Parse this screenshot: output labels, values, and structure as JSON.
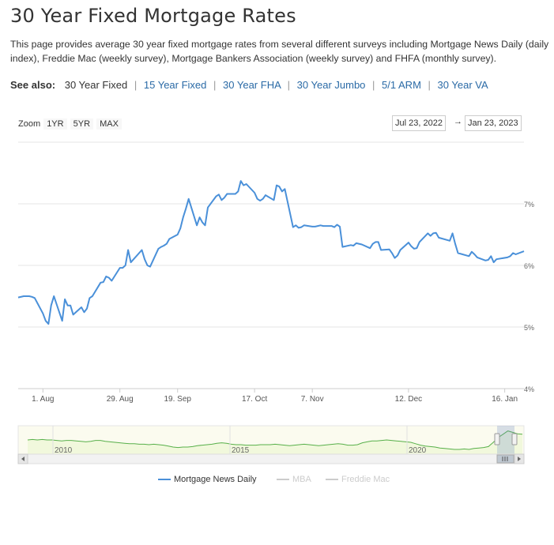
{
  "page": {
    "title": "30 Year Fixed Mortgage Rates",
    "description": "This page provides average 30 year fixed mortgage rates from several different surveys including Mortgage News Daily (daily index), Freddie Mac (weekly survey), Mortgage Bankers Association (weekly survey) and FHFA (monthly survey)."
  },
  "see_also": {
    "label": "See also:",
    "current": "30 Year Fixed",
    "links": [
      "15 Year Fixed",
      "30 Year FHA",
      "30 Year Jumbo",
      "5/1 ARM",
      "30 Year VA"
    ]
  },
  "zoom": {
    "label": "Zoom",
    "buttons": [
      "1YR",
      "5YR",
      "MAX"
    ]
  },
  "range": {
    "from": "Jul 23, 2022",
    "separator": "→",
    "to": "Jan 23, 2023"
  },
  "colors": {
    "series": "#4a90d9",
    "navigator_line": "#58b04a",
    "inactive": "#cccccc",
    "link": "#2a6aa6"
  },
  "chart_data": {
    "type": "line",
    "title": "",
    "xlabel": "",
    "ylabel": "",
    "x_ticks": [
      "1. Aug",
      "29. Aug",
      "19. Sep",
      "17. Oct",
      "7. Nov",
      "12. Dec",
      "16. Jan"
    ],
    "y_ticks": [
      "4%",
      "5%",
      "6%",
      "7%"
    ],
    "ylim": [
      4,
      8
    ],
    "grid": true,
    "legend_position": "bottom",
    "series": [
      {
        "name": "Mortgage News Daily",
        "x": [
          "2022-07-23",
          "2022-07-25",
          "2022-07-27",
          "2022-07-28",
          "2022-07-29",
          "2022-08-01",
          "2022-08-02",
          "2022-08-03",
          "2022-08-04",
          "2022-08-05",
          "2022-08-08",
          "2022-08-09",
          "2022-08-10",
          "2022-08-11",
          "2022-08-12",
          "2022-08-15",
          "2022-08-16",
          "2022-08-17",
          "2022-08-18",
          "2022-08-19",
          "2022-08-22",
          "2022-08-23",
          "2022-08-24",
          "2022-08-25",
          "2022-08-26",
          "2022-08-29",
          "2022-08-30",
          "2022-08-31",
          "2022-09-01",
          "2022-09-02",
          "2022-09-06",
          "2022-09-07",
          "2022-09-08",
          "2022-09-09",
          "2022-09-12",
          "2022-09-13",
          "2022-09-14",
          "2022-09-15",
          "2022-09-16",
          "2022-09-19",
          "2022-09-20",
          "2022-09-21",
          "2022-09-22",
          "2022-09-23",
          "2022-09-26",
          "2022-09-27",
          "2022-09-28",
          "2022-09-29",
          "2022-09-30",
          "2022-10-03",
          "2022-10-04",
          "2022-10-05",
          "2022-10-06",
          "2022-10-07",
          "2022-10-10",
          "2022-10-11",
          "2022-10-12",
          "2022-10-13",
          "2022-10-14",
          "2022-10-17",
          "2022-10-18",
          "2022-10-19",
          "2022-10-20",
          "2022-10-21",
          "2022-10-24",
          "2022-10-25",
          "2022-10-26",
          "2022-10-27",
          "2022-10-28",
          "2022-10-31",
          "2022-11-01",
          "2022-11-02",
          "2022-11-03",
          "2022-11-04",
          "2022-11-07",
          "2022-11-08",
          "2022-11-09",
          "2022-11-10",
          "2022-11-11",
          "2022-11-14",
          "2022-11-15",
          "2022-11-16",
          "2022-11-17",
          "2022-11-18",
          "2022-11-21",
          "2022-11-22",
          "2022-11-23",
          "2022-11-25",
          "2022-11-28",
          "2022-11-29",
          "2022-11-30",
          "2022-12-01",
          "2022-12-02",
          "2022-12-05",
          "2022-12-06",
          "2022-12-07",
          "2022-12-08",
          "2022-12-09",
          "2022-12-12",
          "2022-12-13",
          "2022-12-14",
          "2022-12-15",
          "2022-12-16",
          "2022-12-19",
          "2022-12-20",
          "2022-12-21",
          "2022-12-22",
          "2022-12-23",
          "2022-12-27",
          "2022-12-28",
          "2022-12-29",
          "2022-12-30",
          "2023-01-03",
          "2023-01-04",
          "2023-01-05",
          "2023-01-06",
          "2023-01-09",
          "2023-01-10",
          "2023-01-11",
          "2023-01-12",
          "2023-01-13",
          "2023-01-17",
          "2023-01-18",
          "2023-01-19",
          "2023-01-20",
          "2023-01-23"
        ],
        "values": [
          5.48,
          5.5,
          5.5,
          5.49,
          5.47,
          5.22,
          5.1,
          5.05,
          5.35,
          5.5,
          5.1,
          5.45,
          5.35,
          5.35,
          5.2,
          5.32,
          5.24,
          5.3,
          5.47,
          5.5,
          5.72,
          5.73,
          5.82,
          5.8,
          5.75,
          5.96,
          5.96,
          6.0,
          6.25,
          6.05,
          6.25,
          6.1,
          6.0,
          5.98,
          6.27,
          6.3,
          6.32,
          6.35,
          6.43,
          6.5,
          6.6,
          6.78,
          6.92,
          7.08,
          6.65,
          6.78,
          6.7,
          6.65,
          6.94,
          7.12,
          7.15,
          7.06,
          7.1,
          7.16,
          7.16,
          7.2,
          7.37,
          7.3,
          7.32,
          7.18,
          7.08,
          7.05,
          7.08,
          7.14,
          7.06,
          7.3,
          7.28,
          7.2,
          7.24,
          6.62,
          6.65,
          6.61,
          6.62,
          6.65,
          6.63,
          6.63,
          6.64,
          6.65,
          6.64,
          6.64,
          6.62,
          6.66,
          6.63,
          6.3,
          6.33,
          6.32,
          6.36,
          6.34,
          6.28,
          6.35,
          6.38,
          6.38,
          6.25,
          6.26,
          6.2,
          6.12,
          6.16,
          6.25,
          6.37,
          6.31,
          6.27,
          6.28,
          6.38,
          6.52,
          6.48,
          6.52,
          6.53,
          6.45,
          6.4,
          6.52,
          6.35,
          6.2,
          6.15,
          6.22,
          6.18,
          6.13,
          6.08,
          6.09,
          6.15,
          6.05,
          6.1,
          6.13,
          6.15,
          6.2,
          6.18,
          6.23
        ]
      }
    ],
    "inactive_series": [
      "MBA",
      "Freddie Mac"
    ],
    "navigator": {
      "x_ticks": [
        "2010",
        "2015",
        "2020"
      ],
      "values": [
        5.0,
        5.1,
        5.0,
        5.1,
        5.0,
        5.0,
        4.9,
        4.8,
        4.9,
        4.9,
        4.8,
        4.7,
        4.6,
        4.7,
        4.9,
        4.9,
        4.7,
        4.6,
        4.5,
        4.4,
        4.3,
        4.2,
        4.2,
        4.1,
        4.1,
        4.0,
        4.1,
        4.0,
        3.9,
        3.7,
        3.5,
        3.4,
        3.5,
        3.5,
        3.6,
        3.8,
        3.9,
        4.0,
        4.1,
        4.3,
        4.4,
        4.3,
        4.1,
        4.0,
        4.0,
        3.9,
        3.9,
        3.9,
        4.0,
        4.0,
        4.0,
        4.1,
        4.0,
        3.9,
        3.8,
        3.9,
        4.0,
        4.1,
        4.0,
        3.9,
        3.8,
        3.9,
        4.0,
        4.1,
        4.2,
        4.1,
        3.9,
        3.9,
        4.0,
        4.4,
        4.6,
        4.8,
        4.8,
        4.9,
        5.0,
        4.9,
        4.8,
        4.7,
        4.6,
        4.5,
        4.2,
        3.9,
        3.7,
        3.6,
        3.5,
        3.3,
        3.2,
        3.1,
        3.0,
        3.0,
        3.1,
        3.0,
        3.2,
        3.3,
        3.4,
        3.6,
        4.5,
        5.5,
        6.2,
        6.9,
        6.6,
        6.3,
        6.2
      ]
    }
  }
}
